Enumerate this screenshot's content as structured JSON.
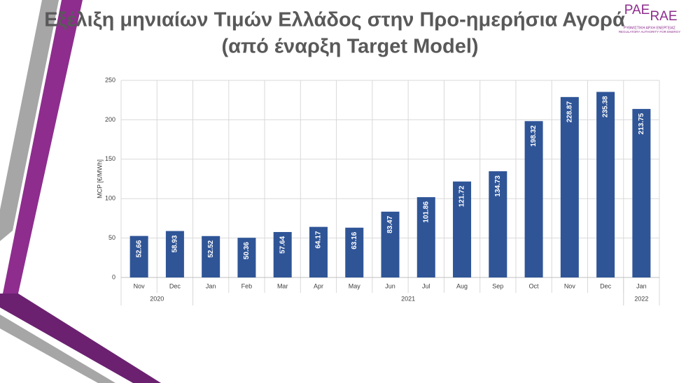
{
  "chart_data": {
    "type": "bar",
    "title": "Εξέλιξη μηνιαίων Τιμών Ελλάδος στην Προ-ημερήσια Αγορά",
    "subtitle": "(από έναρξη Target Model)",
    "logo": {
      "left": "PAE",
      "right": "RAE",
      "line1": "ΡΥΘΜΙΣΤΙΚΗ ΑΡΧΗ ΕΝΕΡΓΕΙΑΣ",
      "line2": "REGULATORY AUTHORITY FOR ENERGY"
    },
    "y_label": "MCP [€/MWh]",
    "categories": [
      "Nov",
      "Dec",
      "Jan",
      "Feb",
      "Mar",
      "Apr",
      "May",
      "Jun",
      "Jul",
      "Aug",
      "Sep",
      "Oct",
      "Nov",
      "Dec",
      "Jan"
    ],
    "x_groups": [
      {
        "label": "2020",
        "span": 2
      },
      {
        "label": "2021",
        "span": 12
      },
      {
        "label": "2022",
        "span": 1
      }
    ],
    "values": [
      52.66,
      58.93,
      52.52,
      50.36,
      57.64,
      64.17,
      63.16,
      83.47,
      101.86,
      121.72,
      134.73,
      198.32,
      228.87,
      235.38,
      213.75
    ],
    "color": "#2f5597",
    "ylim": [
      0,
      250
    ],
    "yticks": [
      0,
      50,
      100,
      150,
      200,
      250
    ],
    "grid": true
  }
}
